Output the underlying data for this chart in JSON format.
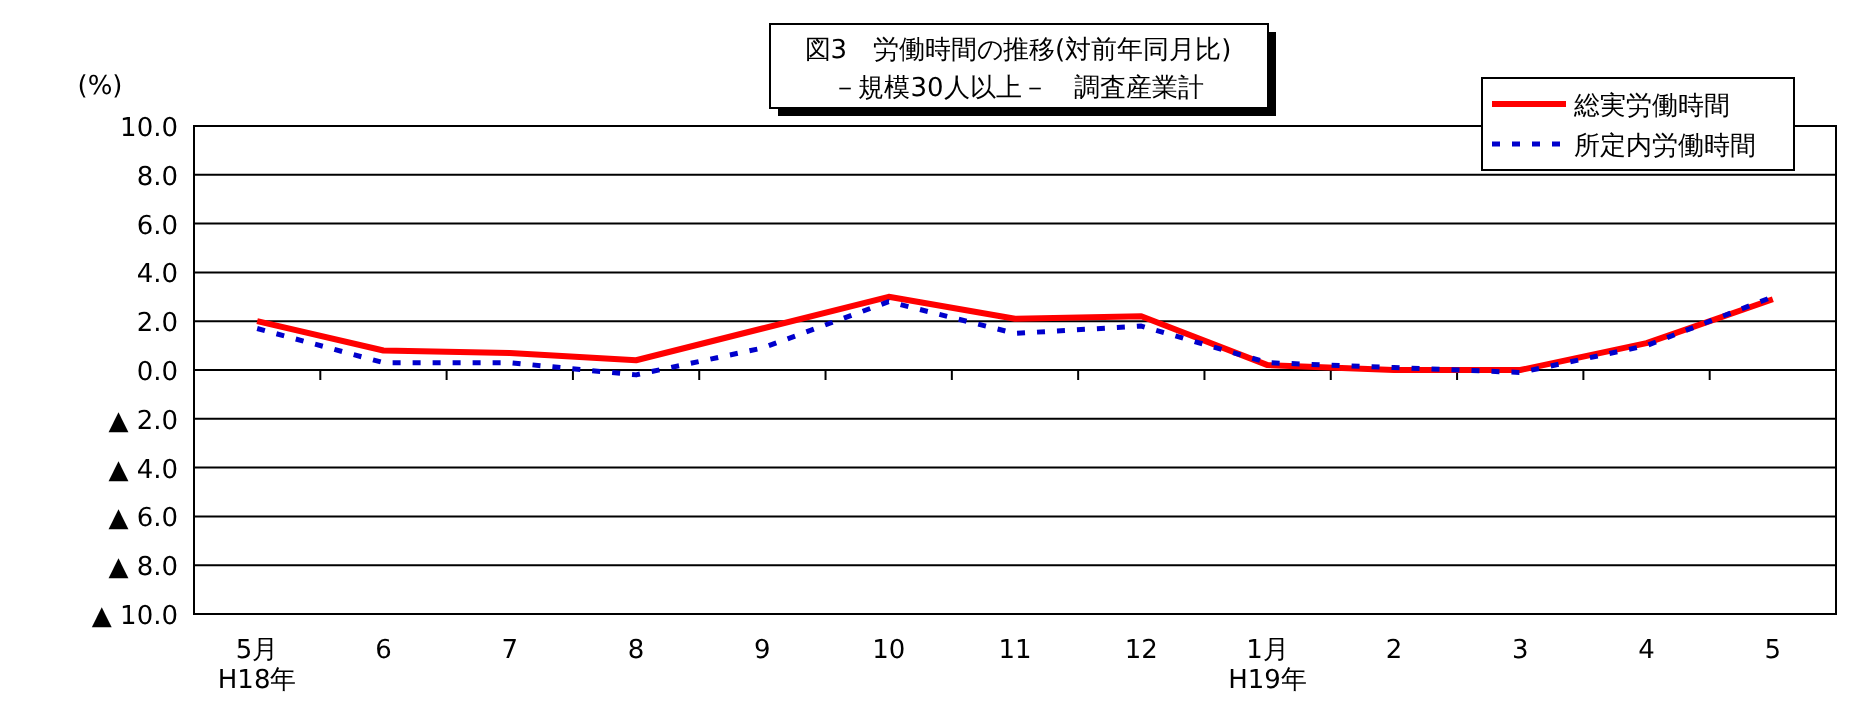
{
  "chart_data": {
    "type": "line",
    "title": "図3　労働時間の推移(対前年同月比)",
    "subtitle": "－規模30人以上－　調査産業計",
    "ylabel": "(%)",
    "categories": [
      "5月\nH18年",
      "6",
      "7",
      "8",
      "9",
      "10",
      "11",
      "12",
      "1月\nH19年",
      "2",
      "3",
      "4",
      "5"
    ],
    "series": [
      {
        "name": "総実労働時間",
        "color": "#ff0000",
        "line_style": "solid",
        "values": [
          2.0,
          0.8,
          0.7,
          0.4,
          1.7,
          3.0,
          2.1,
          2.2,
          0.2,
          0.0,
          0.0,
          1.1,
          2.9
        ]
      },
      {
        "name": "所定内労働時間",
        "color": "#0000cc",
        "line_style": "dotted",
        "values": [
          1.7,
          0.3,
          0.3,
          -0.2,
          0.9,
          2.8,
          1.5,
          1.8,
          0.3,
          0.1,
          -0.1,
          1.0,
          3.0
        ]
      }
    ],
    "ylim": [
      -10,
      10
    ],
    "yticks": [
      {
        "value": -10,
        "label": "▲ 10.0"
      },
      {
        "value": -8,
        "label": "▲ 8.0"
      },
      {
        "value": -6,
        "label": "▲ 6.0"
      },
      {
        "value": -4,
        "label": "▲ 4.0"
      },
      {
        "value": -2,
        "label": "▲ 2.0"
      },
      {
        "value": 0,
        "label": "0.0"
      },
      {
        "value": 2,
        "label": "2.0"
      },
      {
        "value": 4,
        "label": "4.0"
      },
      {
        "value": 6,
        "label": "6.0"
      },
      {
        "value": 8,
        "label": "8.0"
      },
      {
        "value": 10,
        "label": "10.0"
      }
    ],
    "grid": "y",
    "legend": "top right",
    "marker": "none"
  }
}
